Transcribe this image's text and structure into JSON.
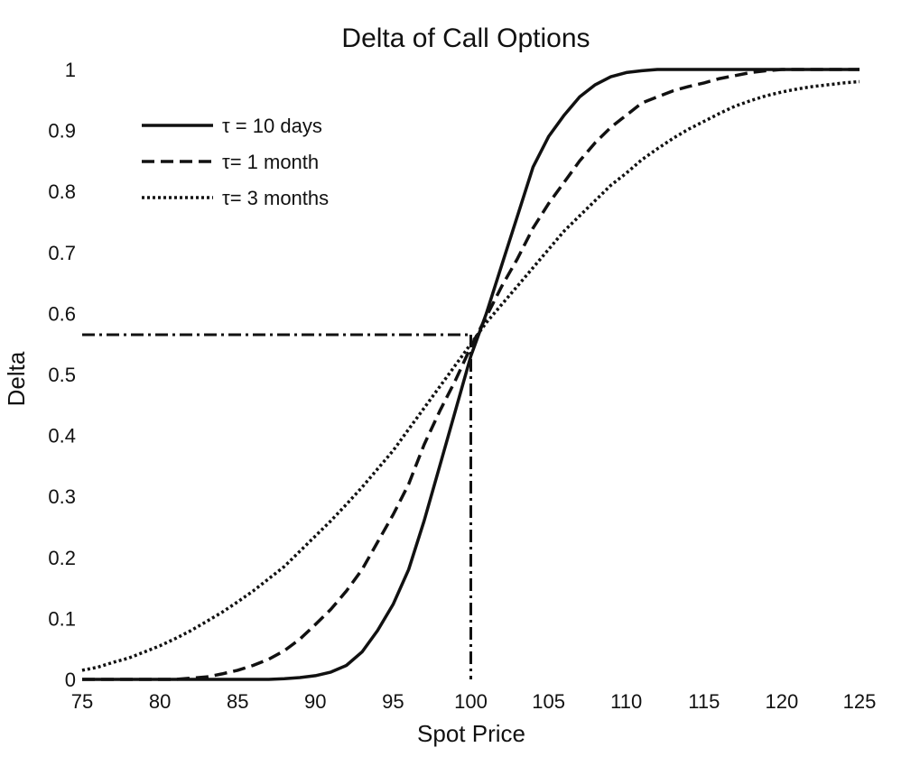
{
  "chart_data": {
    "type": "line",
    "title": "Delta of Call Options",
    "xlabel": "Spot Price",
    "ylabel": "Delta",
    "xlim": [
      75,
      125
    ],
    "ylim": [
      0,
      1
    ],
    "xticks": [
      "75",
      "80",
      "85",
      "90",
      "95",
      "100",
      "105",
      "110",
      "115",
      "120",
      "125"
    ],
    "yticks": [
      "0",
      "0.1",
      "0.2",
      "0.3",
      "0.4",
      "0.5",
      "0.6",
      "0.7",
      "0.8",
      "0.9",
      "1"
    ],
    "grid": false,
    "legend_position": "top-left",
    "x": [
      75,
      76,
      77,
      78,
      79,
      80,
      81,
      82,
      83,
      84,
      85,
      86,
      87,
      88,
      89,
      90,
      91,
      92,
      93,
      94,
      95,
      96,
      97,
      98,
      99,
      100,
      101,
      102,
      103,
      104,
      105,
      106,
      107,
      108,
      109,
      110,
      111,
      112,
      113,
      114,
      115,
      116,
      117,
      118,
      119,
      120,
      121,
      122,
      123,
      124,
      125
    ],
    "series": [
      {
        "name": "τ = 10 days",
        "style": "solid",
        "values": [
          0,
          0,
          0,
          0,
          0,
          0,
          0,
          0,
          0,
          0,
          0,
          0,
          0,
          0.001,
          0.003,
          0.006,
          0.012,
          0.023,
          0.045,
          0.08,
          0.123,
          0.18,
          0.26,
          0.35,
          0.44,
          0.53,
          0.6,
          0.68,
          0.76,
          0.84,
          0.89,
          0.925,
          0.955,
          0.975,
          0.988,
          0.995,
          0.998,
          1,
          1,
          1,
          1,
          1,
          1,
          1,
          1,
          1,
          1,
          1,
          1,
          1,
          1
        ]
      },
      {
        "name": "τ= 1 month",
        "style": "dashed",
        "values": [
          0,
          0,
          0,
          0,
          0,
          0,
          0,
          0.002,
          0.004,
          0.009,
          0.015,
          0.023,
          0.033,
          0.047,
          0.066,
          0.09,
          0.115,
          0.145,
          0.18,
          0.225,
          0.27,
          0.32,
          0.385,
          0.44,
          0.49,
          0.545,
          0.595,
          0.645,
          0.69,
          0.74,
          0.78,
          0.815,
          0.85,
          0.88,
          0.905,
          0.925,
          0.945,
          0.955,
          0.965,
          0.972,
          0.978,
          0.985,
          0.99,
          0.995,
          0.998,
          1,
          1,
          1,
          1,
          1,
          1
        ]
      },
      {
        "name": "τ= 3 months",
        "style": "dotted",
        "values": [
          0.015,
          0.02,
          0.028,
          0.035,
          0.045,
          0.055,
          0.067,
          0.08,
          0.095,
          0.11,
          0.127,
          0.145,
          0.165,
          0.185,
          0.21,
          0.235,
          0.26,
          0.287,
          0.315,
          0.345,
          0.375,
          0.41,
          0.445,
          0.48,
          0.515,
          0.55,
          0.585,
          0.615,
          0.645,
          0.675,
          0.705,
          0.735,
          0.76,
          0.785,
          0.81,
          0.83,
          0.852,
          0.87,
          0.887,
          0.902,
          0.915,
          0.928,
          0.94,
          0.949,
          0.957,
          0.963,
          0.968,
          0.972,
          0.975,
          0.978,
          0.98
        ]
      }
    ],
    "reference_lines": {
      "horizontal_y": 0.565,
      "vertical_x": 100,
      "style": "dash-dot"
    }
  }
}
